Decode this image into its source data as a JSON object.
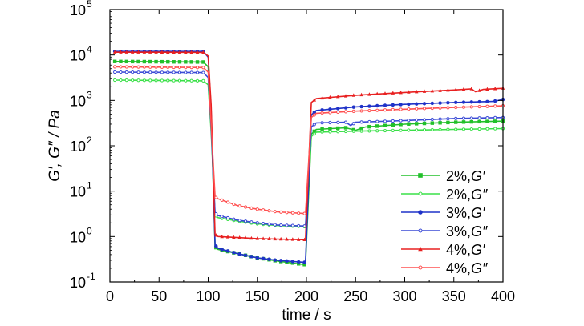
{
  "chart_data": {
    "type": "line",
    "xlabel": "time / s",
    "ylabel": "G′, G″ / Pa",
    "xlim": [
      0,
      400
    ],
    "ylim": [
      0.1,
      100000
    ],
    "yscale": "log",
    "grid": false,
    "legend_position": "bottom-right",
    "x_ticks": [
      "0",
      "50",
      "100",
      "150",
      "200",
      "250",
      "300",
      "350",
      "400"
    ],
    "y_ticks": [
      {
        "value": 0.1,
        "base": "10",
        "exp": "-1"
      },
      {
        "value": 1,
        "base": "10",
        "exp": "0"
      },
      {
        "value": 10,
        "base": "10",
        "exp": "1"
      },
      {
        "value": 100,
        "base": "10",
        "exp": "2"
      },
      {
        "value": 1000,
        "base": "10",
        "exp": "3"
      },
      {
        "value": 10000,
        "base": "10",
        "exp": "4"
      },
      {
        "value": 100000,
        "base": "10",
        "exp": "5"
      }
    ],
    "series": [
      {
        "name": "2%,G′",
        "pct": "2%,",
        "sym": "G′",
        "color": "#22c02a",
        "marker": "filled-square",
        "points": [
          [
            5,
            7200
          ],
          [
            50,
            7100
          ],
          [
            95,
            7000
          ],
          [
            100,
            5500
          ],
          [
            103,
            500
          ],
          [
            107,
            0.6
          ],
          [
            110,
            0.52
          ],
          [
            130,
            0.42
          ],
          [
            150,
            0.34
          ],
          [
            170,
            0.29
          ],
          [
            199,
            0.24
          ],
          [
            205,
            180
          ],
          [
            210,
            230
          ],
          [
            240,
            250
          ],
          [
            250,
            220
          ],
          [
            260,
            260
          ],
          [
            300,
            300
          ],
          [
            350,
            330
          ],
          [
            400,
            350
          ]
        ]
      },
      {
        "name": "2%,G″",
        "pct": "2%,",
        "sym": "G″",
        "color": "#3ae048",
        "marker": "open-circle",
        "points": [
          [
            5,
            2800
          ],
          [
            50,
            2750
          ],
          [
            95,
            2700
          ],
          [
            100,
            2200
          ],
          [
            103,
            200
          ],
          [
            107,
            3.0
          ],
          [
            110,
            2.6
          ],
          [
            130,
            2.2
          ],
          [
            150,
            1.9
          ],
          [
            170,
            1.75
          ],
          [
            199,
            1.65
          ],
          [
            205,
            160
          ],
          [
            210,
            200
          ],
          [
            250,
            210
          ],
          [
            300,
            220
          ],
          [
            350,
            230
          ],
          [
            400,
            240
          ]
        ]
      },
      {
        "name": "3%,G′",
        "pct": "3%,",
        "sym": "G′",
        "color": "#1f32c8",
        "marker": "filled-circle",
        "points": [
          [
            5,
            12000
          ],
          [
            50,
            12000
          ],
          [
            95,
            12000
          ],
          [
            100,
            9000
          ],
          [
            103,
            600
          ],
          [
            107,
            0.65
          ],
          [
            110,
            0.55
          ],
          [
            130,
            0.42
          ],
          [
            150,
            0.34
          ],
          [
            170,
            0.3
          ],
          [
            199,
            0.27
          ],
          [
            205,
            480
          ],
          [
            210,
            600
          ],
          [
            250,
            720
          ],
          [
            300,
            820
          ],
          [
            350,
            900
          ],
          [
            390,
            950
          ],
          [
            400,
            1050
          ]
        ]
      },
      {
        "name": "3%,G″",
        "pct": "3%,",
        "sym": "G″",
        "color": "#3a4ad6",
        "marker": "open-circle",
        "points": [
          [
            5,
            4200
          ],
          [
            50,
            4150
          ],
          [
            95,
            4100
          ],
          [
            100,
            3200
          ],
          [
            103,
            250
          ],
          [
            107,
            3.3
          ],
          [
            110,
            2.9
          ],
          [
            130,
            2.3
          ],
          [
            150,
            2.0
          ],
          [
            170,
            1.8
          ],
          [
            199,
            1.7
          ],
          [
            205,
            260
          ],
          [
            210,
            320
          ],
          [
            240,
            330
          ],
          [
            245,
            280
          ],
          [
            250,
            330
          ],
          [
            300,
            360
          ],
          [
            350,
            400
          ],
          [
            400,
            420
          ]
        ]
      },
      {
        "name": "4%,G′",
        "pct": "4%,",
        "sym": "G′",
        "color": "#e82020",
        "marker": "filled-triangle",
        "points": [
          [
            5,
            11500
          ],
          [
            50,
            11500
          ],
          [
            95,
            11400
          ],
          [
            100,
            9500
          ],
          [
            103,
            800
          ],
          [
            107,
            1.1
          ],
          [
            110,
            1.0
          ],
          [
            130,
            0.95
          ],
          [
            150,
            0.9
          ],
          [
            170,
            0.88
          ],
          [
            199,
            0.85
          ],
          [
            205,
            900
          ],
          [
            210,
            1100
          ],
          [
            250,
            1300
          ],
          [
            300,
            1500
          ],
          [
            350,
            1700
          ],
          [
            368,
            1800
          ],
          [
            372,
            1550
          ],
          [
            380,
            1750
          ],
          [
            400,
            1850
          ]
        ]
      },
      {
        "name": "4%,G″",
        "pct": "4%,",
        "sym": "G″",
        "color": "#ff5050",
        "marker": "open-circle",
        "points": [
          [
            5,
            5500
          ],
          [
            50,
            5400
          ],
          [
            95,
            5300
          ],
          [
            100,
            4200
          ],
          [
            103,
            300
          ],
          [
            107,
            7.5
          ],
          [
            110,
            6.8
          ],
          [
            130,
            4.8
          ],
          [
            150,
            4.0
          ],
          [
            170,
            3.5
          ],
          [
            199,
            3.2
          ],
          [
            205,
            420
          ],
          [
            210,
            520
          ],
          [
            250,
            580
          ],
          [
            300,
            640
          ],
          [
            350,
            700
          ],
          [
            400,
            760
          ]
        ]
      }
    ]
  }
}
